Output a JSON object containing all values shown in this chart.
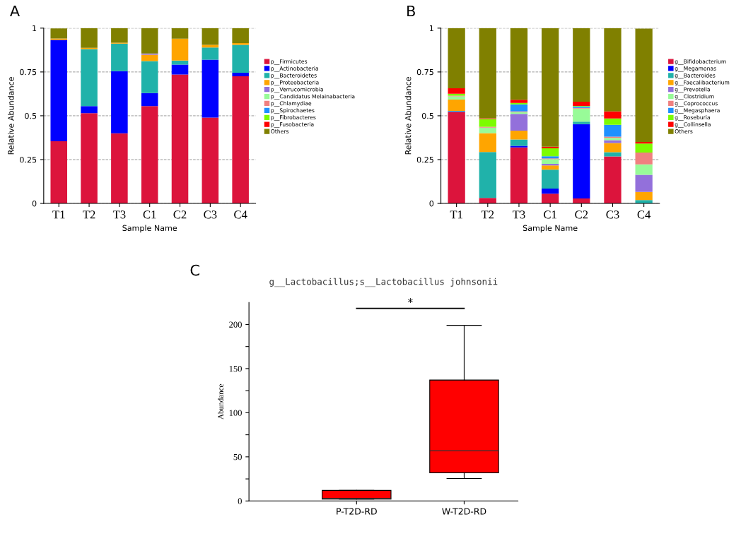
{
  "chart_data": [
    {
      "type": "bar",
      "stacked": true,
      "annotations": [
        "A"
      ],
      "xlabel": "Sample Name",
      "ylabel": "Relative Abundance",
      "categories": [
        "T1",
        "T2",
        "T3",
        "C1",
        "C2",
        "C3",
        "C4"
      ],
      "ylim": [
        0,
        1
      ],
      "yticks": [
        0,
        0.25,
        0.5,
        0.75,
        1
      ],
      "grid": "y",
      "legend": "right",
      "series": [
        {
          "name": "p__Firmicutes",
          "color": "#dc143c",
          "values": [
            0.355,
            0.515,
            0.4,
            0.555,
            0.735,
            0.49,
            0.725
          ]
        },
        {
          "name": "p__Actinobacteria",
          "color": "#0000ff",
          "values": [
            0.578,
            0.04,
            0.355,
            0.075,
            0.057,
            0.33,
            0.02
          ]
        },
        {
          "name": "p__Bacteroidetes",
          "color": "#20b2aa",
          "values": [
            null,
            0.325,
            0.157,
            0.182,
            0.023,
            0.07,
            0.16
          ]
        },
        {
          "name": "p__Proteobacteria",
          "color": "#ffa500",
          "values": [
            0.008,
            0.008,
            0.005,
            0.036,
            0.125,
            0.015,
            0.01
          ]
        },
        {
          "name": "p__Verrucomicrobia",
          "color": "#9370db",
          "values": [
            0,
            0,
            0,
            0.007,
            0,
            0,
            0
          ]
        },
        {
          "name": "p__Candidatus Melainabacteria",
          "color": "#98fb98",
          "values": [
            0,
            0,
            0,
            0,
            0,
            0,
            0
          ]
        },
        {
          "name": "p__Chlamydiae",
          "color": "#f08080",
          "values": [
            0,
            0,
            0,
            0,
            0,
            0,
            0
          ]
        },
        {
          "name": "p__Spirochaetes",
          "color": "#1e90ff",
          "values": [
            0,
            0,
            0,
            0,
            0,
            0,
            0
          ]
        },
        {
          "name": "p__Fibrobacteres",
          "color": "#7cfc00",
          "values": [
            0,
            0,
            0,
            0,
            0,
            0,
            0
          ]
        },
        {
          "name": "p__Fusobacteria",
          "color": "#ff0000",
          "values": [
            0,
            0,
            0,
            0,
            0,
            0,
            0
          ]
        },
        {
          "name": "Others",
          "color": "#808000",
          "values": [
            0.057,
            0.112,
            0.083,
            0.145,
            0.06,
            0.095,
            0.085
          ]
        }
      ]
    },
    {
      "type": "bar",
      "stacked": true,
      "annotations": [
        "B"
      ],
      "xlabel": "Sample Name",
      "ylabel": "Relative Abundance",
      "categories": [
        "T1",
        "T2",
        "T3",
        "C1",
        "C2",
        "C3",
        "C4"
      ],
      "ylim": [
        0,
        1
      ],
      "yticks": [
        0,
        0.25,
        0.5,
        0.75,
        1
      ],
      "grid": "y",
      "legend": "right",
      "series": [
        {
          "name": "g__Bifidobacterium",
          "color": "#dc143c",
          "values": [
            0.522,
            0.031,
            0.319,
            0.055,
            0.028,
            0.268,
            null
          ]
        },
        {
          "name": "g__Megamonas",
          "color": "#0000ff",
          "values": [
            0.003,
            0,
            0.009,
            0.03,
            0.424,
            0,
            0
          ]
        },
        {
          "name": "g__Bacteroides",
          "color": "#20b2aa",
          "values": [
            0.003,
            0.262,
            0.037,
            0.107,
            0.014,
            0.024,
            0.019
          ]
        },
        {
          "name": "g__Faecalibacterium",
          "color": "#ffa500",
          "values": [
            0.064,
            0.108,
            0.05,
            0.025,
            0,
            0.053,
            0.047
          ]
        },
        {
          "name": "g__Prevotella",
          "color": "#9370db",
          "values": [
            0,
            0,
            0.096,
            0.009,
            0,
            0.016,
            0.097
          ]
        },
        {
          "name": "g__Clostridium",
          "color": "#98fb98",
          "values": [
            0.018,
            0.031,
            0.01,
            0.027,
            0.075,
            0.013,
            0.06
          ]
        },
        {
          "name": "g__Coprococcus",
          "color": "#f08080",
          "values": [
            0.005,
            0.005,
            0.004,
            0.004,
            0.004,
            0.007,
            0.067
          ]
        },
        {
          "name": "g__Megasphaera",
          "color": "#1e90ff",
          "values": [
            0,
            0,
            0.04,
            0.012,
            0.008,
            0.067,
            0
          ]
        },
        {
          "name": "g__Roseburia",
          "color": "#7cfc00",
          "values": [
            0.011,
            0.045,
            0.008,
            0.045,
            0.003,
            0.037,
            0.052
          ]
        },
        {
          "name": "g__Collinsella",
          "color": "#ff0000",
          "values": [
            0.031,
            0.004,
            0.018,
            0.009,
            0.024,
            0.04,
            0.009
          ]
        },
        {
          "name": "Others",
          "color": "#808000",
          "values": [
            0.343,
            0.514,
            0.409,
            0.677,
            0.42,
            0.475,
            0.646
          ]
        }
      ]
    },
    {
      "type": "box",
      "title": "g__Lactobacillus;s__Lactobacillus johnsonii",
      "annotations": [
        "C",
        "*"
      ],
      "ylabel": "Abundance",
      "categories": [
        "P-T2D-RD",
        "W-T2D-RD"
      ],
      "ylim": [
        0,
        225
      ],
      "yticks": [
        0,
        {
          "value": 25,
          "label": null
        },
        50,
        {
          "value": 75,
          "label": null
        },
        100,
        {
          "value": 125,
          "label": null
        },
        150,
        {
          "value": 175,
          "label": null
        },
        200
      ],
      "series": [
        {
          "color": "#ff0000",
          "boxes": [
            {
              "low": 2,
              "q1": 2,
              "median": 3,
              "q3": 12,
              "high": 12
            },
            {
              "low": 25.5,
              "q1": 32,
              "median": 57,
              "q3": 137,
              "high": 199
            }
          ]
        }
      ]
    }
  ]
}
